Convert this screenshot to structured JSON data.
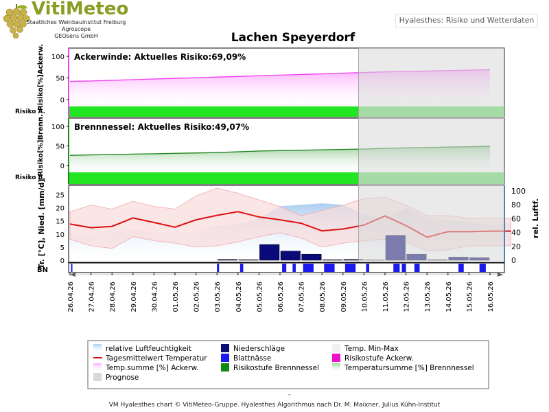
{
  "brand": {
    "name": "VitiMeteo",
    "lines": [
      "Staatliches Weinbauinstitut Freiburg",
      "Agroscope",
      "GEOsens GmbH"
    ]
  },
  "app_title": "Hyalesthes: Risiko und Wetterdaten",
  "footer": {
    "separator": "-",
    "text": "VM Hyalesthes chart © VitiMeteo-Gruppe. Hyalesthes Algorithmus nach Dr. M. Maixner, Julius Kühn-Institut"
  },
  "colors": {
    "risk_band": "#22e622",
    "risk_band_forecast": "#66e066",
    "ackerwinde_line": "#ee44ee",
    "ackerwinde_fill": "#ffb0ff",
    "brennnessel_line": "#228822",
    "brennnessel_fill": "#9ed29e",
    "temp_line": "#dd1111",
    "temp_band": "#fadcdc",
    "humidity_fill": "#a8ccf0",
    "precip": "#0a0a7a",
    "leaf_wetness": "#1a1aee",
    "prognose": "#d9d9d9"
  },
  "chart_data": {
    "title": "Lachen Speyerdorf",
    "type": "line",
    "dates": [
      "26.04.26",
      "27.04.26",
      "28.04.26",
      "29.04.26",
      "30.04.26",
      "01.05.26",
      "02.05.26",
      "03.05.26",
      "04.05.26",
      "05.05.26",
      "06.05.26",
      "07.05.26",
      "08.05.26",
      "09.05.26",
      "10.05.26",
      "11.05.26",
      "12.05.26",
      "13.05.26",
      "14.05.26",
      "15.05.26",
      "16.05.26"
    ],
    "forecast_from": "10.05.26",
    "panels": [
      {
        "id": "ackerwinde",
        "heading": "Ackerwinde:",
        "risk_label": "Aktuelles Risiko:69,09%",
        "ylabel": "Risiko[%]Ackerw.",
        "band_label": "Risiko A.",
        "ylim": [
          -20,
          110
        ],
        "yticks": [
          0,
          50,
          100
        ],
        "values": [
          42,
          43,
          44.5,
          46,
          47.5,
          49,
          50.5,
          52,
          53.5,
          55,
          56.5,
          58,
          59.5,
          61,
          62.5,
          64,
          65,
          66,
          67,
          68,
          69.09
        ]
      },
      {
        "id": "brennnessel",
        "heading": "Brennnessel:",
        "risk_label": "Aktuelles Risiko:49,07%",
        "ylabel": "Risiko[%]Brenn.",
        "band_label": "Risiko B.",
        "ylim": [
          -20,
          110
        ],
        "yticks": [
          0,
          50,
          100
        ],
        "values": [
          26,
          27,
          28,
          29,
          30,
          31,
          32,
          33,
          35,
          37,
          38,
          39,
          40,
          41,
          42,
          44,
          45,
          46,
          47,
          48,
          49.07
        ]
      }
    ],
    "weather": {
      "ylabel_left": "Tr. [°C], Nied. [mm/d]",
      "ylabel_right": "rel. Luftf.",
      "ylim_left": [
        0,
        28
      ],
      "yticks_left": [
        0,
        5,
        10,
        15,
        20,
        25
      ],
      "ylim_right": [
        0,
        100
      ],
      "yticks_right": [
        0,
        20,
        40,
        60,
        80,
        100
      ],
      "temp_mean": [
        13.8,
        12.4,
        12.9,
        16.1,
        14.4,
        12.6,
        15.4,
        17.1,
        18.5,
        16.5,
        15.4,
        14.1,
        11.2,
        11.9,
        13.4,
        16.9,
        13.2,
        8.8,
        10.9,
        10.9,
        11.1,
        11.1
      ],
      "temp_max": [
        18.5,
        21,
        19.5,
        22.5,
        20.5,
        19.5,
        24.5,
        27.5,
        25.5,
        23,
        20.5,
        17,
        19,
        21,
        23.5,
        24,
        21,
        17,
        17,
        16,
        16,
        16
      ],
      "temp_min": [
        8,
        5.5,
        4.5,
        9,
        7.5,
        6.5,
        5,
        5.5,
        7,
        9,
        10.5,
        8.5,
        5,
        6.5,
        7.5,
        8,
        7,
        3.5,
        4,
        5.5,
        5.5,
        5.5
      ],
      "humidity": [
        40,
        38,
        40,
        44,
        40,
        40,
        40,
        50,
        52,
        60,
        78,
        80,
        82,
        80,
        66,
        60,
        75,
        60,
        57,
        55,
        50,
        55
      ],
      "precipitation": [
        0,
        0,
        0,
        0,
        0,
        0,
        0,
        0.3,
        0.2,
        6,
        3.5,
        2.3,
        0.2,
        0.3,
        0.1,
        9.5,
        2.3,
        0.2,
        1.2,
        1,
        0
      ],
      "leaf_wetness": [
        [
          0.05,
          0.1
        ],
        [
          7,
          7.1
        ],
        [
          8.1,
          8.25
        ],
        [
          10.1,
          10.3
        ],
        [
          10.6,
          10.75
        ],
        [
          11.1,
          11.6
        ],
        [
          12.1,
          12.6
        ],
        [
          13.1,
          13.6
        ],
        [
          14.1,
          14.25
        ],
        [
          15.4,
          15.7
        ],
        [
          15.8,
          16
        ],
        [
          16.4,
          16.65
        ],
        [
          18.5,
          18.75
        ],
        [
          19.5,
          19.8
        ]
      ],
      "bn_label": "BN"
    },
    "legend": [
      {
        "label": "relative Luftfeuchtigkeit",
        "swatch": "humidity"
      },
      {
        "label": "Niederschläge",
        "swatch": "precip"
      },
      {
        "label": "Temp. Min-Max",
        "swatch": "tempband"
      },
      {
        "label": "Tagesmittelwert Temperatur",
        "swatch": "templine"
      },
      {
        "label": "Blattnässe",
        "swatch": "wet"
      },
      {
        "label": "Risikostufe Ackerw.",
        "swatch": "riskA"
      },
      {
        "label": "Temp.summe [%] Ackerw.",
        "swatch": "sumA"
      },
      {
        "label": "Risikostufe Brennnessel",
        "swatch": "riskB"
      },
      {
        "label": "Temperatursumme [%] Brennnessel",
        "swatch": "sumB"
      },
      {
        "label": "Prognose",
        "swatch": "prog"
      }
    ]
  }
}
